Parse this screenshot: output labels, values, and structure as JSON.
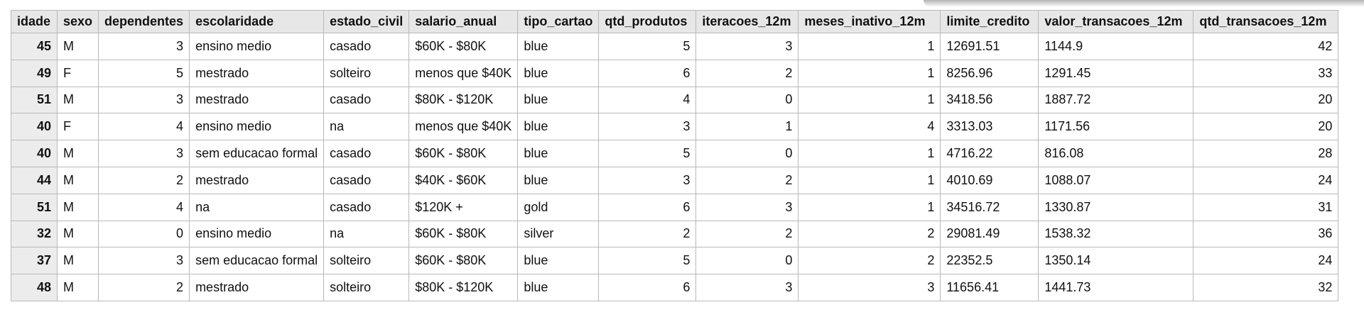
{
  "table": {
    "columns": [
      {
        "label": "idade",
        "align": "idx"
      },
      {
        "label": "sexo",
        "align": "txt"
      },
      {
        "label": "dependentes",
        "align": "num"
      },
      {
        "label": "escolaridade",
        "align": "txt"
      },
      {
        "label": "estado_civil",
        "align": "txt"
      },
      {
        "label": "salario_anual",
        "align": "txt"
      },
      {
        "label": "tipo_cartao",
        "align": "txt"
      },
      {
        "label": "qtd_produtos",
        "align": "num"
      },
      {
        "label": "iteracoes_12m",
        "align": "num"
      },
      {
        "label": "meses_inativo_12m",
        "align": "num"
      },
      {
        "label": "limite_credito",
        "align": "txt"
      },
      {
        "label": "valor_transacoes_12m",
        "align": "txt"
      },
      {
        "label": "qtd_transacoes_12m",
        "align": "num"
      }
    ],
    "rows": [
      [
        "45",
        "M",
        "3",
        "ensino medio",
        "casado",
        "$60K - $80K",
        "blue",
        "5",
        "3",
        "1",
        "12691.51",
        "1144.9",
        "42"
      ],
      [
        "49",
        "F",
        "5",
        "mestrado",
        "solteiro",
        "menos que $40K",
        "blue",
        "6",
        "2",
        "1",
        "8256.96",
        "1291.45",
        "33"
      ],
      [
        "51",
        "M",
        "3",
        "mestrado",
        "casado",
        "$80K - $120K",
        "blue",
        "4",
        "0",
        "1",
        "3418.56",
        "1887.72",
        "20"
      ],
      [
        "40",
        "F",
        "4",
        "ensino medio",
        "na",
        "menos que $40K",
        "blue",
        "3",
        "1",
        "4",
        "3313.03",
        "1171.56",
        "20"
      ],
      [
        "40",
        "M",
        "3",
        "sem educacao formal",
        "casado",
        "$60K - $80K",
        "blue",
        "5",
        "0",
        "1",
        "4716.22",
        "816.08",
        "28"
      ],
      [
        "44",
        "M",
        "2",
        "mestrado",
        "casado",
        "$40K - $60K",
        "blue",
        "3",
        "2",
        "1",
        "4010.69",
        "1088.07",
        "24"
      ],
      [
        "51",
        "M",
        "4",
        "na",
        "casado",
        "$120K +",
        "gold",
        "6",
        "3",
        "1",
        "34516.72",
        "1330.87",
        "31"
      ],
      [
        "32",
        "M",
        "0",
        "ensino medio",
        "na",
        "$60K - $80K",
        "silver",
        "2",
        "2",
        "2",
        "29081.49",
        "1538.32",
        "36"
      ],
      [
        "37",
        "M",
        "3",
        "sem educacao formal",
        "solteiro",
        "$60K - $80K",
        "blue",
        "5",
        "0",
        "2",
        "22352.5",
        "1350.14",
        "24"
      ],
      [
        "48",
        "M",
        "2",
        "mestrado",
        "solteiro",
        "$80K - $120K",
        "blue",
        "6",
        "3",
        "3",
        "11656.41",
        "1441.73",
        "32"
      ]
    ]
  }
}
